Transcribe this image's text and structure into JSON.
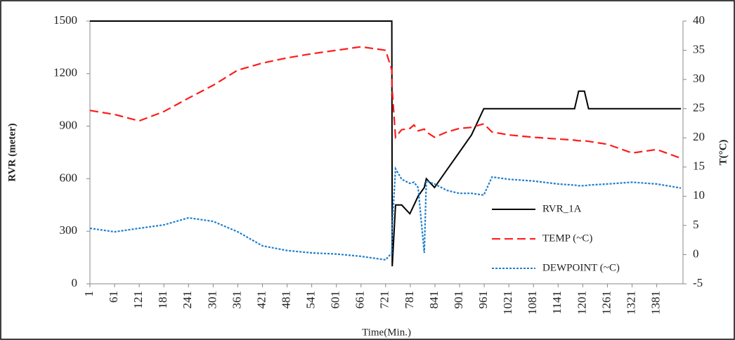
{
  "chart_data": {
    "type": "line",
    "x_label": "Time(Min.)",
    "y_label": "RVR (meter)",
    "y2_label": "T(°C)",
    "x": [
      1,
      61,
      121,
      181,
      241,
      301,
      361,
      421,
      481,
      541,
      601,
      661,
      721,
      736,
      737,
      745,
      760,
      780,
      790,
      800,
      815,
      820,
      840,
      870,
      900,
      930,
      960,
      980,
      1021,
      1081,
      1141,
      1181,
      1191,
      1205,
      1215,
      1261,
      1321,
      1381,
      1440
    ],
    "xlim": [
      1,
      1445
    ],
    "xticks": [
      1,
      61,
      121,
      181,
      241,
      301,
      361,
      421,
      481,
      541,
      601,
      661,
      721,
      781,
      841,
      901,
      961,
      1021,
      1081,
      1141,
      1201,
      1261,
      1321,
      1381
    ],
    "ylim": [
      0,
      1500
    ],
    "yticks": [
      0,
      300,
      600,
      900,
      1200,
      1500
    ],
    "y2lim": [
      -5,
      40
    ],
    "y2ticks": [
      -5,
      0,
      5,
      10,
      15,
      20,
      25,
      30,
      35,
      40
    ],
    "legend_position": "lower right",
    "series": [
      {
        "name": "RVR_1A",
        "color": "#000000",
        "dash": "solid",
        "axis": "y",
        "values": [
          1500,
          1500,
          1500,
          1500,
          1500,
          1500,
          1500,
          1500,
          1500,
          1500,
          1500,
          1500,
          1500,
          1500,
          100,
          450,
          450,
          400,
          450,
          500,
          550,
          600,
          550,
          650,
          750,
          850,
          1000,
          1000,
          1000,
          1000,
          1000,
          1000,
          1100,
          1100,
          1000,
          1000,
          1000,
          1000,
          1000
        ]
      },
      {
        "name": "TEMP (~C)",
        "color": "#ff1a1a",
        "dash": "dashed",
        "axis": "y2",
        "values": [
          24.7,
          24,
          22.9,
          24.5,
          26.8,
          29,
          31.6,
          32.8,
          33.7,
          34.4,
          35,
          35.6,
          35,
          31.6,
          28,
          20.1,
          21.4,
          21.6,
          22.2,
          21.2,
          21.5,
          21,
          20.1,
          21,
          21.6,
          21.8,
          22.4,
          21,
          20.5,
          20.1,
          19.8,
          19.6,
          19.5,
          19.5,
          19.4,
          18.9,
          17.4,
          18,
          16.5
        ]
      },
      {
        "name": "DEWPOINT (~C)",
        "color": "#1f7ed0",
        "dash": "dotted",
        "axis": "y2",
        "values": [
          4.5,
          3.9,
          4.5,
          5.1,
          6.3,
          5.7,
          3.9,
          1.5,
          0.7,
          0.3,
          0.1,
          -0.3,
          -0.9,
          0.3,
          5,
          14.7,
          12.9,
          12.2,
          12.4,
          11.5,
          0.3,
          12.6,
          12.1,
          11,
          10.5,
          10.5,
          10.2,
          13.3,
          12.9,
          12.6,
          12.1,
          11.9,
          11.8,
          11.8,
          11.9,
          12.1,
          12.4,
          12.1,
          11.4
        ]
      }
    ]
  }
}
